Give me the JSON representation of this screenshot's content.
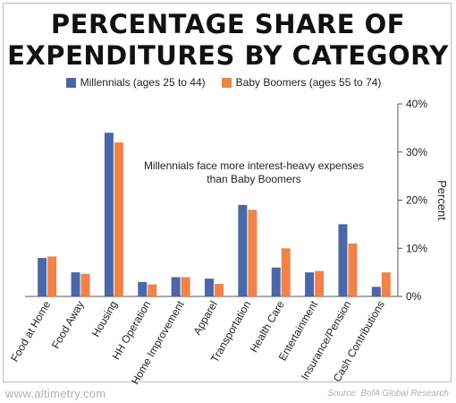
{
  "title_lines": [
    "PERCENTAGE SHARE OF",
    "EXPENDITURES BY CATEGORY"
  ],
  "footer": {
    "site": "www.altimetry.com",
    "source": "Source: BofA Global Research"
  },
  "colors": {
    "millennials": "#4a67a8",
    "boomers": "#f0834b"
  },
  "chart_data": {
    "type": "bar",
    "title": "PERCENTAGE SHARE OF EXPENDITURES BY CATEGORY",
    "xlabel": "",
    "ylabel": "Percent",
    "ylim": [
      0,
      40
    ],
    "yticks": [
      "0%",
      "10%",
      "20%",
      "30%",
      "40%"
    ],
    "y_axis_side": "right",
    "legend_position": "top",
    "grid": false,
    "categories": [
      "Food at Home",
      "Food Away",
      "Housing",
      "HH Operation",
      "Home Improvement",
      "Apparel",
      "Transportation",
      "Health Care",
      "Entertainment",
      "Insurance/Pension",
      "Cash Contributions"
    ],
    "series": [
      {
        "name": "Millennials (ages 25 to 44)",
        "values": [
          8,
          5,
          34,
          3,
          4,
          3.7,
          19,
          6,
          5,
          15,
          2
        ]
      },
      {
        "name": "Baby Boomers (ages 55 to 74)",
        "values": [
          8.3,
          4.7,
          32,
          2.5,
          4,
          2.6,
          18,
          10,
          5.3,
          11,
          5
        ]
      }
    ],
    "annotation": "Millennials face more interest-heavy expenses than Baby Boomers"
  }
}
